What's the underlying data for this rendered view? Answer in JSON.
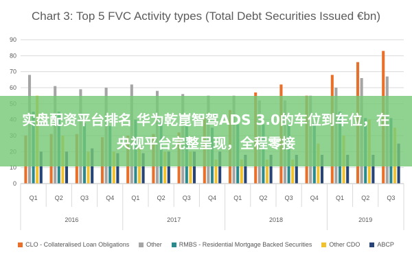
{
  "overlay": {
    "text": "实盘配资平台排名 华为乾崑智驾ADS 3.0的车位到车位，在央视平台完整呈现，全程零接"
  },
  "chart_data": {
    "type": "bar",
    "title": "Chart 3: Top 5 FVC Activity types (Total Debt Securities Issued €bn)",
    "xlabel": "",
    "ylabel": "",
    "ylim": [
      0,
      90
    ],
    "yticks": [
      0,
      10,
      20,
      30,
      40,
      50,
      60,
      70,
      80,
      90
    ],
    "grid": true,
    "legend_position": "bottom",
    "categories": [
      "Q1",
      "Q2",
      "Q3",
      "Q4",
      "Q1",
      "Q2",
      "Q3",
      "Q4",
      "Q1",
      "Q2",
      "Q3",
      "Q4",
      "Q1",
      "Q2",
      "Q3"
    ],
    "years": [
      {
        "label": "2016",
        "count": 4
      },
      {
        "label": "2017",
        "count": 4
      },
      {
        "label": "2018",
        "count": 4
      },
      {
        "label": "2019",
        "count": 3
      }
    ],
    "series": [
      {
        "name": "CLO - Collateralised Loan Obligations",
        "color": "#e8702a",
        "values": [
          30,
          31,
          31,
          29,
          30,
          31,
          32,
          41,
          46,
          57,
          62,
          55,
          68,
          76,
          83
        ]
      },
      {
        "name": "Other",
        "color": "#a5a5a5",
        "values": [
          68,
          61,
          59,
          60,
          62,
          58,
          56,
          55,
          55,
          52,
          52,
          55,
          60,
          66,
          67
        ]
      },
      {
        "name": "RMBS - Residential Mortgage Backed Securities",
        "color": "#2a8a8e",
        "values": [
          45,
          45,
          38,
          36,
          40,
          39,
          36,
          35,
          37,
          37,
          37,
          38,
          45,
          41,
          41
        ]
      },
      {
        "name": "Other CDO",
        "color": "#f2c12e",
        "values": [
          55,
          30,
          20,
          20,
          22,
          20,
          20,
          15,
          15,
          15,
          15,
          25,
          30,
          40,
          35
        ]
      },
      {
        "name": "ABCP",
        "color": "#264478",
        "values": [
          20,
          20,
          22,
          19,
          19,
          20,
          20,
          20,
          18,
          18,
          18,
          18,
          18,
          18,
          25
        ]
      }
    ]
  }
}
